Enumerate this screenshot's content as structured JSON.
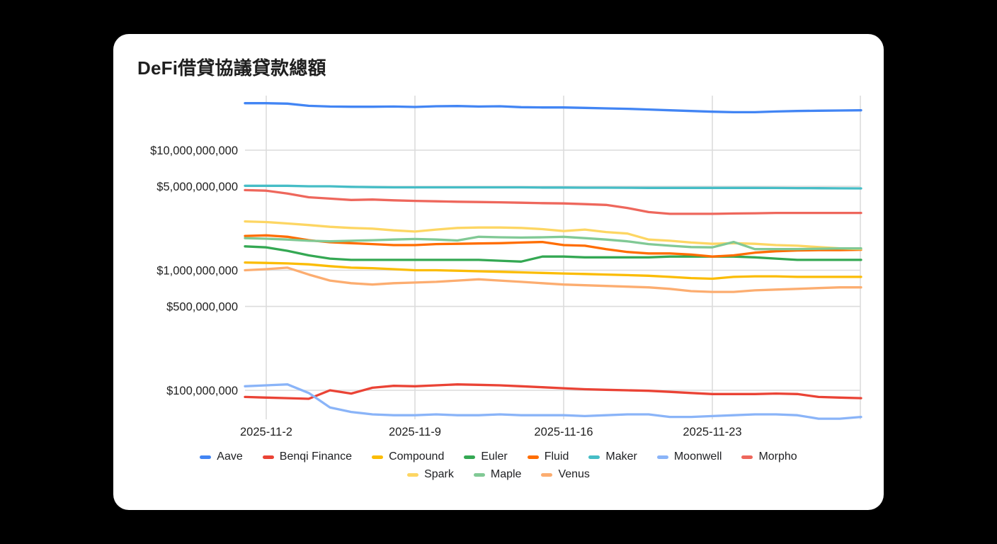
{
  "page": {
    "background_color": "#000000",
    "card_background_color": "#ffffff"
  },
  "chart_data": {
    "type": "line",
    "title": "DeFi借貸協議貸款總額",
    "unit": "USD",
    "values_unit": "billions_USD",
    "grid_color": "#dcdcdc",
    "axis_text_color": "#1f1f1f",
    "x_axis": {
      "dates": [
        "2025-11-01",
        "2025-11-02",
        "2025-11-03",
        "2025-11-04",
        "2025-11-05",
        "2025-11-06",
        "2025-11-07",
        "2025-11-08",
        "2025-11-09",
        "2025-11-10",
        "2025-11-11",
        "2025-11-12",
        "2025-11-13",
        "2025-11-14",
        "2025-11-15",
        "2025-11-16",
        "2025-11-17",
        "2025-11-18",
        "2025-11-19",
        "2025-11-20",
        "2025-11-21",
        "2025-11-22",
        "2025-11-23",
        "2025-11-24",
        "2025-11-25",
        "2025-11-26",
        "2025-11-27",
        "2025-11-28",
        "2025-11-29",
        "2025-11-30"
      ],
      "ticks": [
        {
          "label": "2025-11-2",
          "index": 1
        },
        {
          "label": "2025-11-9",
          "index": 8
        },
        {
          "label": "2025-11-16",
          "index": 15
        },
        {
          "label": "2025-11-23",
          "index": 22
        }
      ]
    },
    "y_axis": {
      "scale": "log",
      "ticks": [
        {
          "label": "$10,000,000,000",
          "value": 10000000000
        },
        {
          "label": "$5,000,000,000",
          "value": 5000000000
        },
        {
          "label": "$1,000,000,000",
          "value": 1000000000
        },
        {
          "label": "$500,000,000",
          "value": 500000000
        },
        {
          "label": "$100,000,000",
          "value": 100000000
        }
      ]
    },
    "series": [
      {
        "name": "Aave",
        "color": "#4285F4",
        "values_billions": [
          24.6,
          24.6,
          24.4,
          23.4,
          23.1,
          23.0,
          23.0,
          23.1,
          22.9,
          23.2,
          23.3,
          23.1,
          23.2,
          22.8,
          22.7,
          22.7,
          22.5,
          22.3,
          22.1,
          21.8,
          21.5,
          21.2,
          20.9,
          20.7,
          20.7,
          21.0,
          21.2,
          21.3,
          21.4,
          21.5
        ]
      },
      {
        "name": "Benqi Finance",
        "color": "#EA4335",
        "values_billions": [
          0.088,
          0.087,
          0.086,
          0.085,
          0.1,
          0.094,
          0.105,
          0.109,
          0.108,
          0.11,
          0.112,
          0.111,
          0.11,
          0.108,
          0.106,
          0.104,
          0.102,
          0.101,
          0.1,
          0.099,
          0.097,
          0.095,
          0.093,
          0.093,
          0.093,
          0.094,
          0.093,
          0.088,
          0.087,
          0.086
        ]
      },
      {
        "name": "Compound",
        "color": "#FBBC04",
        "values_billions": [
          1.16,
          1.15,
          1.14,
          1.12,
          1.08,
          1.05,
          1.04,
          1.02,
          1.0,
          1.0,
          0.99,
          0.98,
          0.97,
          0.96,
          0.95,
          0.94,
          0.93,
          0.92,
          0.91,
          0.9,
          0.88,
          0.86,
          0.85,
          0.88,
          0.89,
          0.89,
          0.88,
          0.88,
          0.88,
          0.88
        ]
      },
      {
        "name": "Euler",
        "color": "#34A853",
        "values_billions": [
          1.58,
          1.55,
          1.45,
          1.33,
          1.25,
          1.22,
          1.22,
          1.22,
          1.22,
          1.22,
          1.22,
          1.22,
          1.2,
          1.18,
          1.3,
          1.3,
          1.28,
          1.28,
          1.28,
          1.28,
          1.3,
          1.3,
          1.3,
          1.3,
          1.28,
          1.25,
          1.22,
          1.22,
          1.22,
          1.22
        ]
      },
      {
        "name": "Fluid",
        "color": "#FF6D01",
        "values_billions": [
          1.93,
          1.95,
          1.9,
          1.78,
          1.71,
          1.68,
          1.65,
          1.62,
          1.62,
          1.65,
          1.66,
          1.67,
          1.68,
          1.7,
          1.72,
          1.62,
          1.6,
          1.5,
          1.42,
          1.38,
          1.38,
          1.35,
          1.3,
          1.33,
          1.4,
          1.44,
          1.46,
          1.47,
          1.47,
          1.48
        ]
      },
      {
        "name": "Maker",
        "color": "#46BDC6",
        "values_billions": [
          5.05,
          5.05,
          5.05,
          5.0,
          5.0,
          4.95,
          4.92,
          4.9,
          4.9,
          4.9,
          4.9,
          4.9,
          4.9,
          4.9,
          4.88,
          4.88,
          4.87,
          4.87,
          4.86,
          4.85,
          4.85,
          4.85,
          4.85,
          4.85,
          4.85,
          4.84,
          4.83,
          4.82,
          4.81,
          4.8
        ]
      },
      {
        "name": "Moonwell",
        "color": "#8AB4F8",
        "values_billions": [
          0.108,
          0.11,
          0.112,
          0.095,
          0.072,
          0.066,
          0.063,
          0.062,
          0.062,
          0.063,
          0.062,
          0.062,
          0.063,
          0.062,
          0.062,
          0.062,
          0.061,
          0.062,
          0.063,
          0.063,
          0.06,
          0.06,
          0.061,
          0.062,
          0.063,
          0.063,
          0.062,
          0.058,
          0.058,
          0.06
        ]
      },
      {
        "name": "Morpho",
        "color": "#EE675C",
        "values_billions": [
          4.65,
          4.6,
          4.35,
          4.05,
          3.95,
          3.85,
          3.88,
          3.82,
          3.78,
          3.75,
          3.72,
          3.7,
          3.68,
          3.65,
          3.62,
          3.6,
          3.55,
          3.5,
          3.3,
          3.05,
          2.95,
          2.95,
          2.95,
          2.97,
          2.98,
          3.0,
          3.0,
          3.0,
          3.0,
          3.0
        ]
      },
      {
        "name": "Spark",
        "color": "#FDD663",
        "values_billions": [
          2.55,
          2.52,
          2.45,
          2.38,
          2.3,
          2.25,
          2.22,
          2.15,
          2.1,
          2.18,
          2.25,
          2.27,
          2.27,
          2.25,
          2.2,
          2.12,
          2.18,
          2.08,
          2.02,
          1.8,
          1.76,
          1.7,
          1.66,
          1.68,
          1.66,
          1.62,
          1.6,
          1.56,
          1.52,
          1.5
        ]
      },
      {
        "name": "Maple",
        "color": "#81C995",
        "values_billions": [
          1.85,
          1.83,
          1.8,
          1.76,
          1.74,
          1.76,
          1.78,
          1.8,
          1.82,
          1.8,
          1.77,
          1.9,
          1.88,
          1.87,
          1.88,
          1.9,
          1.85,
          1.8,
          1.74,
          1.65,
          1.6,
          1.56,
          1.55,
          1.72,
          1.5,
          1.5,
          1.5,
          1.51,
          1.52,
          1.52
        ]
      },
      {
        "name": "Venus",
        "color": "#FCAD70",
        "values_billions": [
          1.0,
          1.02,
          1.05,
          0.92,
          0.82,
          0.78,
          0.76,
          0.78,
          0.79,
          0.8,
          0.82,
          0.84,
          0.82,
          0.8,
          0.78,
          0.76,
          0.75,
          0.74,
          0.73,
          0.72,
          0.7,
          0.67,
          0.66,
          0.66,
          0.68,
          0.69,
          0.7,
          0.71,
          0.72,
          0.72
        ]
      }
    ],
    "legend_rows": [
      [
        "Aave",
        "Benqi Finance",
        "Compound",
        "Euler",
        "Fluid",
        "Maker",
        "Moonwell",
        "Morpho"
      ],
      [
        "Spark",
        "Maple",
        "Venus"
      ]
    ]
  }
}
